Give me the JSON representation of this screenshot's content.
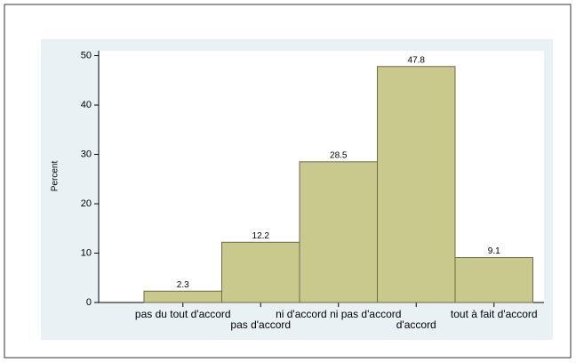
{
  "chart_data": {
    "type": "bar",
    "y_label": "Percent",
    "categories": [
      "pas du tout d'accord",
      "pas d'accord",
      "ni d'accord ni pas d'accord",
      "d'accord",
      "tout à fait d'accord"
    ],
    "values": [
      2.3,
      12.2,
      28.5,
      47.8,
      9.1
    ],
    "color": "#c9c98e",
    "ylim": [
      0,
      51
    ],
    "yticks": [
      0,
      10,
      20,
      30,
      40,
      50
    ],
    "grid": false
  }
}
